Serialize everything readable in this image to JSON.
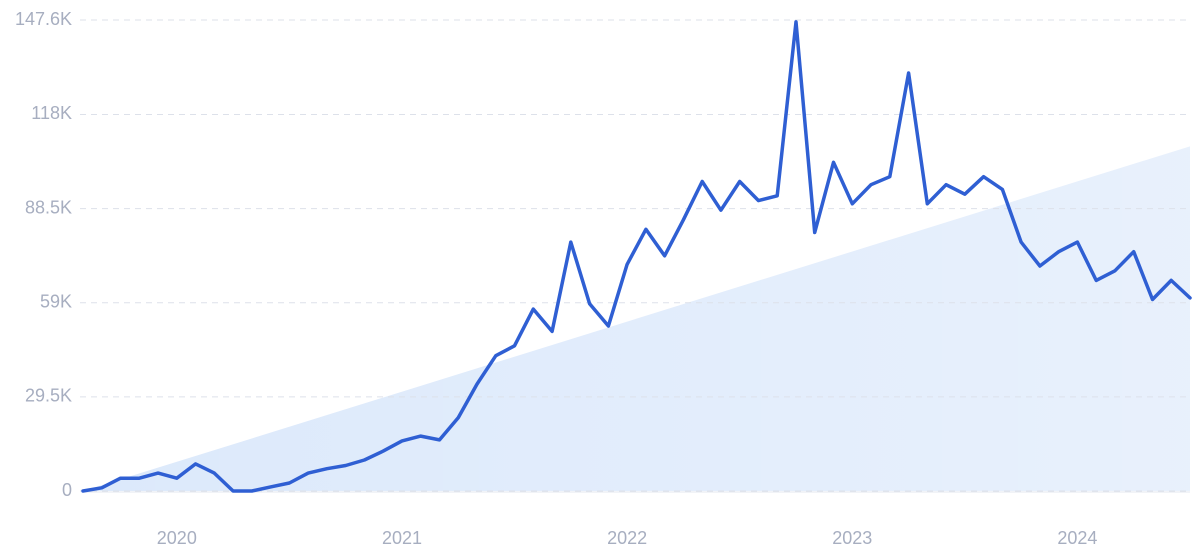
{
  "chart_data": {
    "type": "line",
    "categories": [
      null,
      null,
      null,
      null,
      null,
      "2020",
      null,
      null,
      null,
      null,
      null,
      null,
      null,
      null,
      null,
      null,
      null,
      "2021",
      null,
      null,
      null,
      null,
      null,
      null,
      null,
      null,
      null,
      null,
      null,
      "2022",
      null,
      null,
      null,
      null,
      null,
      null,
      null,
      null,
      null,
      null,
      null,
      "2023",
      null,
      null,
      null,
      null,
      null,
      null,
      null,
      null,
      null,
      null,
      null,
      "2024",
      null,
      null,
      null,
      null,
      null,
      null
    ],
    "values": [
      0,
      1000,
      4000,
      4000,
      5600,
      4000,
      8500,
      5600,
      0,
      0,
      1300,
      2500,
      5600,
      7000,
      8000,
      9700,
      12500,
      15700,
      17200,
      16000,
      23000,
      33500,
      42400,
      45500,
      57000,
      50000,
      78000,
      58700,
      51700,
      71000,
      82000,
      73700,
      85000,
      97000,
      88000,
      97000,
      91000,
      92500,
      147000,
      81000,
      103000,
      90000,
      96000,
      98500,
      131000,
      90000,
      96000,
      93000,
      98500,
      94500,
      78000,
      70500,
      75000,
      78000,
      66000,
      69000,
      75000,
      60000,
      66000,
      60500
    ],
    "color": "#2f5fd3",
    "trend": [
      0,
      108000
    ],
    "trend_color": "#dce9fb",
    "ylim": [
      0,
      147600
    ],
    "yticks": [
      0,
      {
        "value": 29500,
        "label": "29.5K"
      },
      {
        "value": 59000,
        "label": "59K"
      },
      {
        "value": 88500,
        "label": "88.5K"
      },
      {
        "value": 118000,
        "label": "118K"
      },
      {
        "value": 147600,
        "label": "147.6K"
      }
    ],
    "grid": true
  }
}
